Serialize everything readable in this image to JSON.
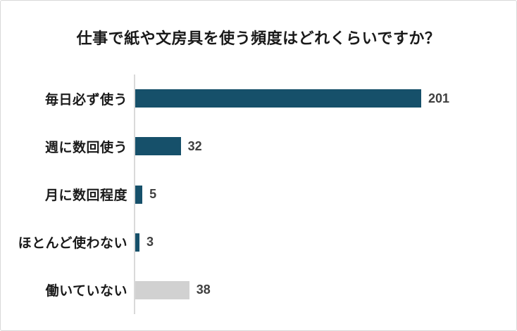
{
  "header": {
    "title": "仕事で紙や文房具を使う頻度はどれくらいですか？"
  },
  "colors": {
    "bar_primary": "#16506A",
    "bar_muted": "#D1D1D1",
    "axis_line": "#D9D9D9",
    "value_label": "#3F3F3F",
    "category_label": "#1A1A1A",
    "background": "#FFFFFF",
    "border": "#D8D8D8"
  },
  "chart_data": {
    "type": "bar",
    "orientation": "horizontal",
    "title": "仕事で紙や文房具を使う頻度はどれくらいですか？",
    "categories": [
      "毎日必ず使う",
      "週に数回使う",
      "月に数回程度",
      "ほとんど使わない",
      "働いていない"
    ],
    "values": [
      201,
      32,
      5,
      3,
      38
    ],
    "bar_colors": [
      "#16506A",
      "#16506A",
      "#16506A",
      "#16506A",
      "#D1D1D1"
    ],
    "value_labels": [
      "201",
      "32",
      "5",
      "3",
      "38"
    ],
    "xlabel": "",
    "ylabel": "",
    "xlim": [
      0,
      220
    ],
    "grid": false,
    "legend": false,
    "value_labels_position": "right-of-bar"
  }
}
